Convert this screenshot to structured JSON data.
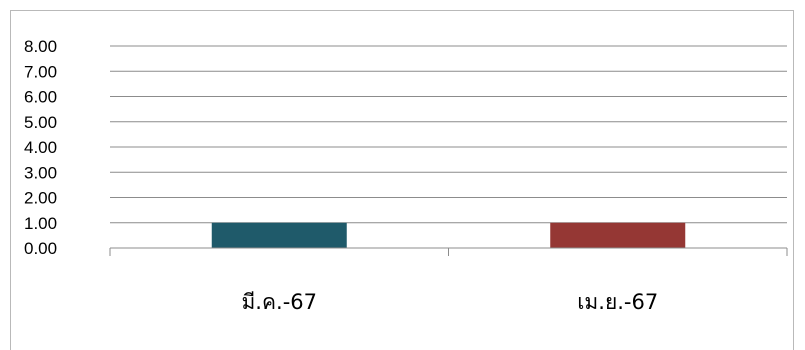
{
  "chart_data": {
    "type": "bar",
    "categories": [
      "มี.ค.-67",
      "เม.ย.-67"
    ],
    "values": [
      1.0,
      1.0
    ],
    "colors": [
      "#1f5a6a",
      "#953734"
    ],
    "yticks": [
      "0.00",
      "1.00",
      "2.00",
      "3.00",
      "4.00",
      "5.00",
      "6.00",
      "7.00",
      "8.00"
    ],
    "ylim": [
      0,
      8
    ],
    "grid": true,
    "title": "",
    "xlabel": "",
    "ylabel": ""
  }
}
